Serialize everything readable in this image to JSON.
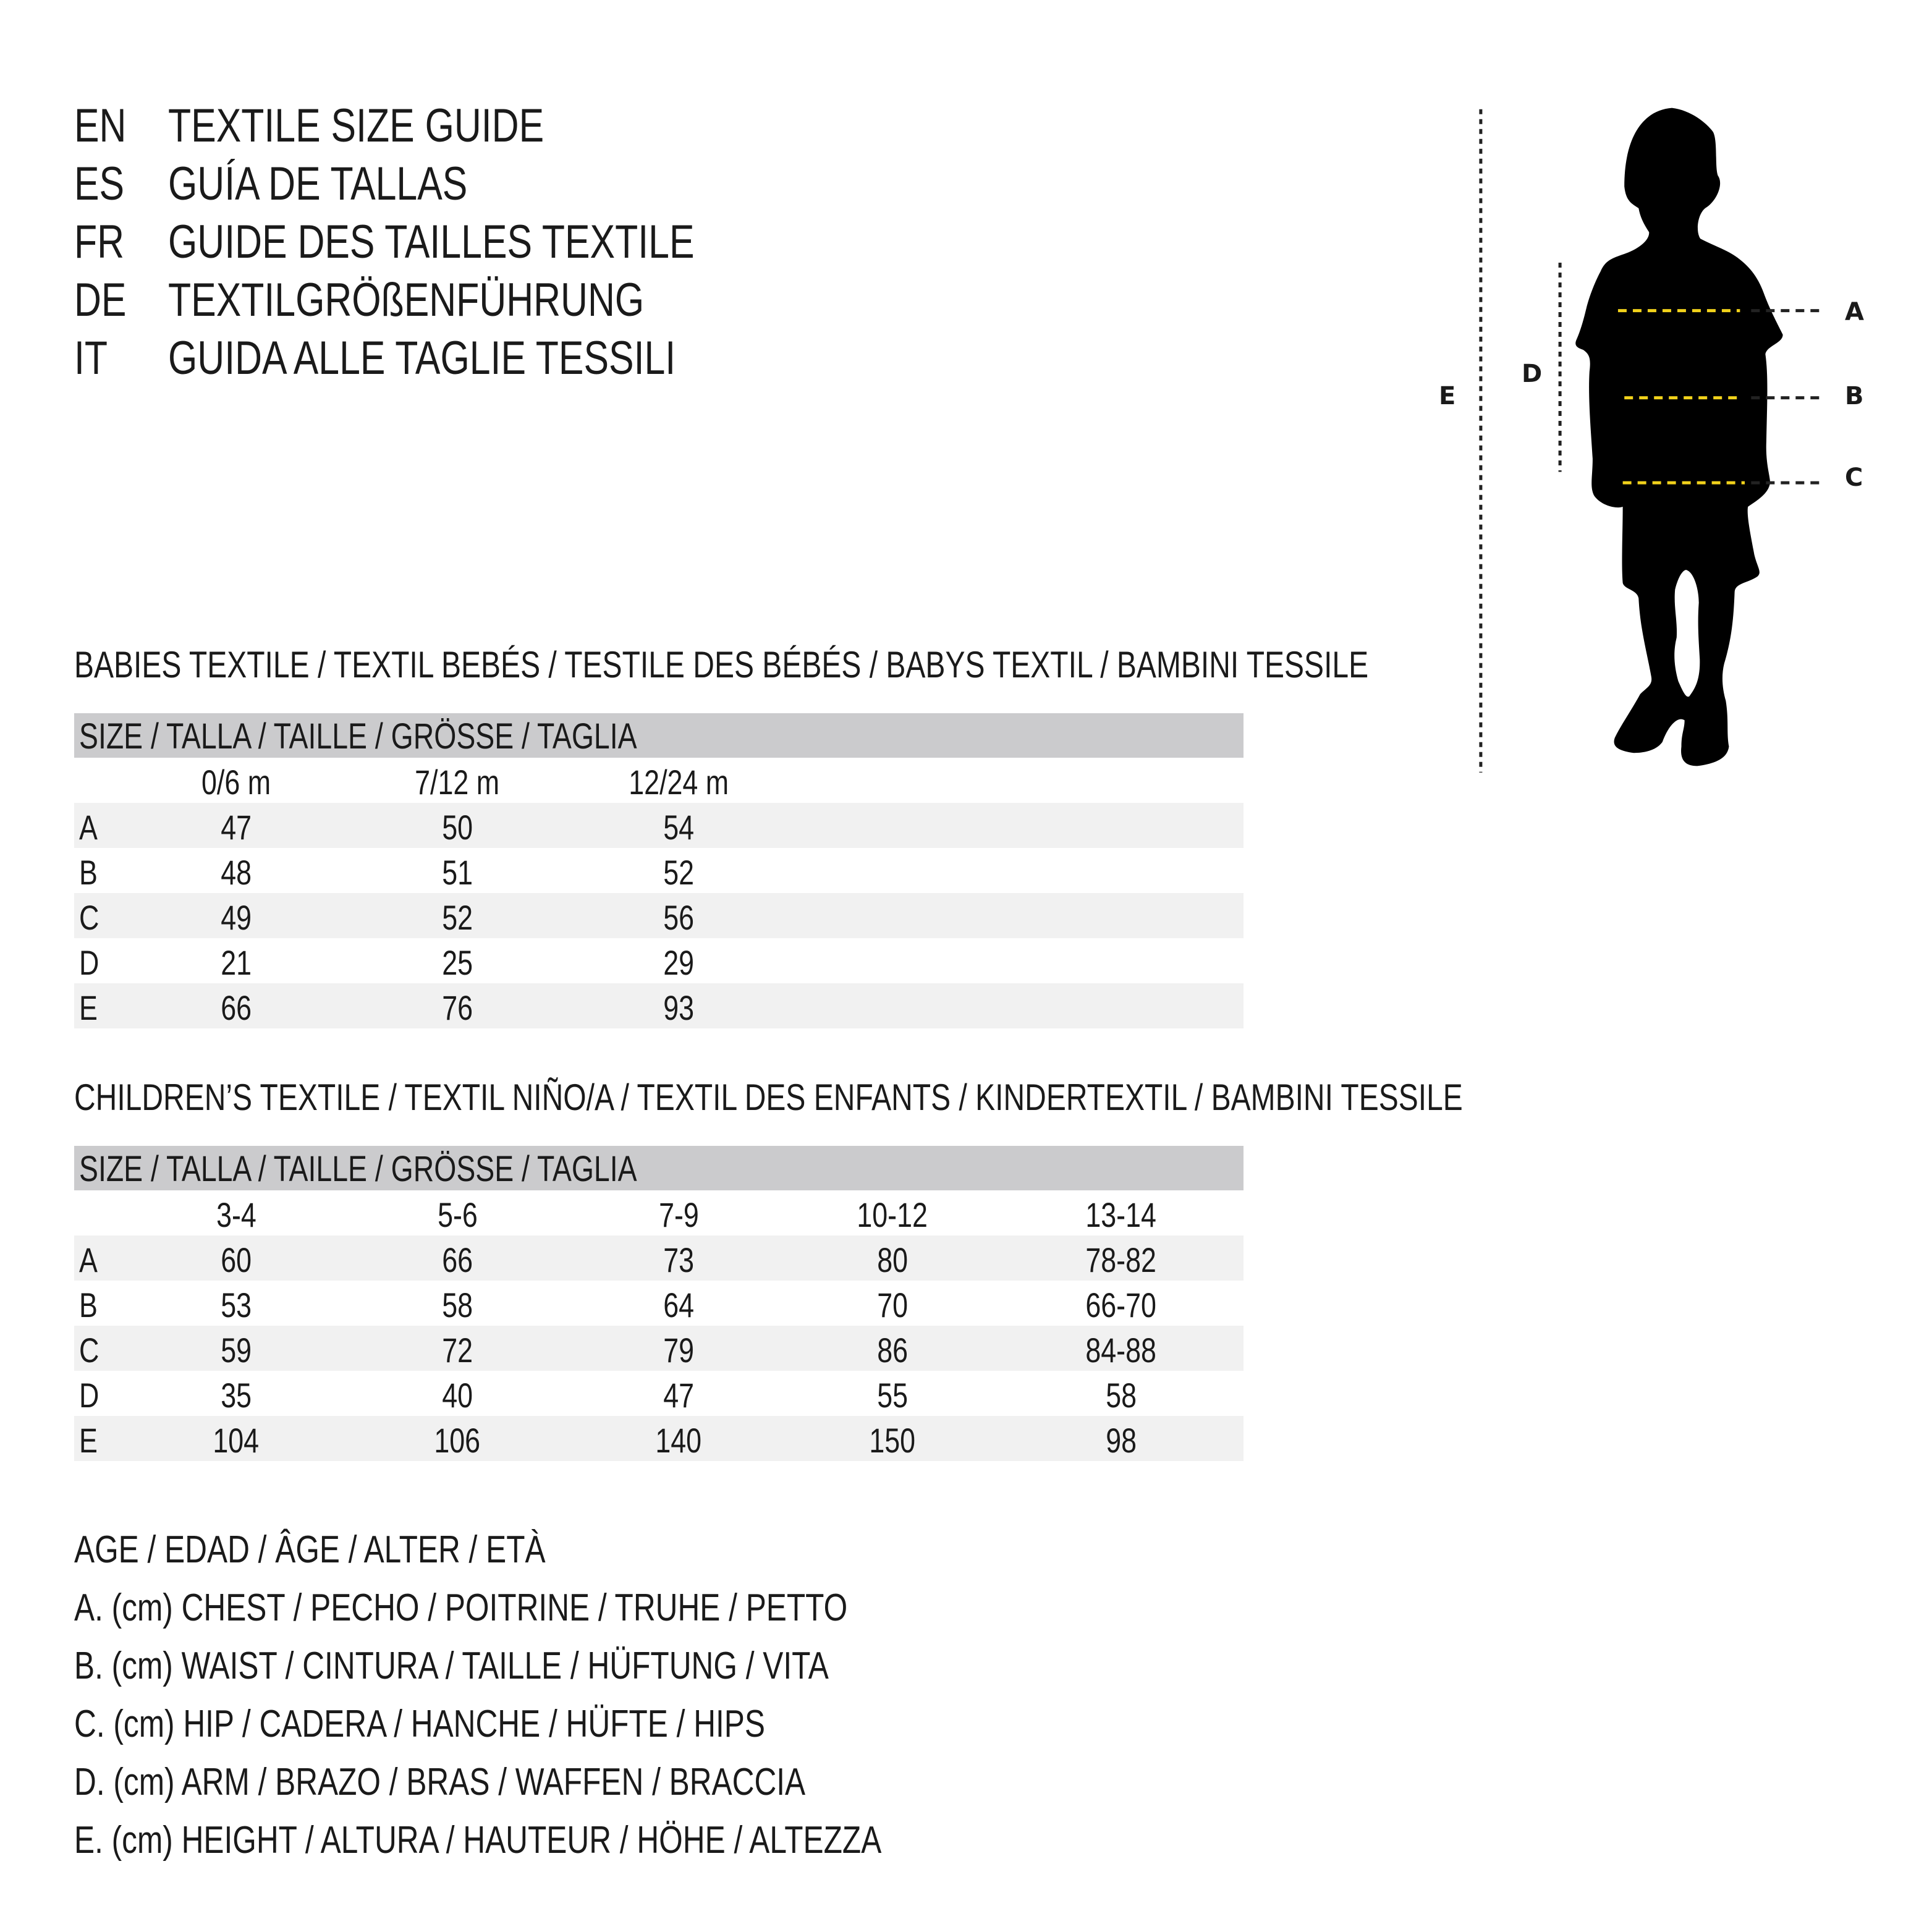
{
  "header": [
    {
      "code": "EN",
      "title": "TEXTILE SIZE GUIDE"
    },
    {
      "code": "ES",
      "title": "GUÍA DE TALLAS"
    },
    {
      "code": "FR",
      "title": "GUIDE DES TAILLES TEXTILE"
    },
    {
      "code": "DE",
      "title": "TEXTILGRÖßENFÜHRUNG"
    },
    {
      "code": "IT",
      "title": "GUIDA ALLE TAGLIE TESSILI"
    }
  ],
  "figure": {
    "labels": {
      "a": "A",
      "b": "B",
      "c": "C",
      "d": "D",
      "e": "E"
    },
    "highlight_color": "#f2d21b",
    "silhouette_color": "#000000"
  },
  "babies": {
    "heading": "BABIES TEXTILE / TEXTIL BEBÉS / TESTILE DES BÉBÉS / BABYS TEXTIL / BAMBINI TESSILE",
    "size_label": "SIZE / TALLA / TAILLE / GRÖSSE / TAGLIA",
    "columns": [
      "0/6 m",
      "7/12 m",
      "12/24 m"
    ],
    "rows": [
      {
        "label": "A",
        "values": [
          "47",
          "50",
          "54"
        ]
      },
      {
        "label": "B",
        "values": [
          "48",
          "51",
          "52"
        ]
      },
      {
        "label": "C",
        "values": [
          "49",
          "52",
          "56"
        ]
      },
      {
        "label": "D",
        "values": [
          "21",
          "25",
          "29"
        ]
      },
      {
        "label": "E",
        "values": [
          "66",
          "76",
          "93"
        ]
      }
    ]
  },
  "children": {
    "heading": "CHILDREN’S TEXTILE / TEXTIL NIÑO/A / TEXTIL DES ENFANTS / KINDERTEXTIL / BAMBINI TESSILE",
    "size_label": "SIZE / TALLA / TAILLE / GRÖSSE / TAGLIA",
    "columns": [
      "3-4",
      "5-6",
      "7-9",
      "10-12",
      "13-14"
    ],
    "rows": [
      {
        "label": "A",
        "values": [
          "60",
          "66",
          "73",
          "80",
          "78-82"
        ]
      },
      {
        "label": "B",
        "values": [
          "53",
          "58",
          "64",
          "70",
          "66-70"
        ]
      },
      {
        "label": "C",
        "values": [
          "59",
          "72",
          "79",
          "86",
          "84-88"
        ]
      },
      {
        "label": "D",
        "values": [
          "35",
          "40",
          "47",
          "55",
          "58"
        ]
      },
      {
        "label": "E",
        "values": [
          "104",
          "106",
          "140",
          "150",
          "98"
        ]
      }
    ]
  },
  "legend": [
    "AGE / EDAD / ÂGE / ALTER / ETÀ",
    "A. (cm) CHEST / PECHO / POITRINE / TRUHE / PETTO",
    "B. (cm) WAIST / CINTURA / TAILLE / HÜFTUNG / VITA",
    "C. (cm) HIP / CADERA / HANCHE / HÜFTE / HIPS",
    "D. (cm) ARM / BRAZO / BRAS / WAFFEN / BRACCIA",
    "E. (cm) HEIGHT / ALTURA / HAUTEUR / HÖHE / ALTEZZA"
  ]
}
